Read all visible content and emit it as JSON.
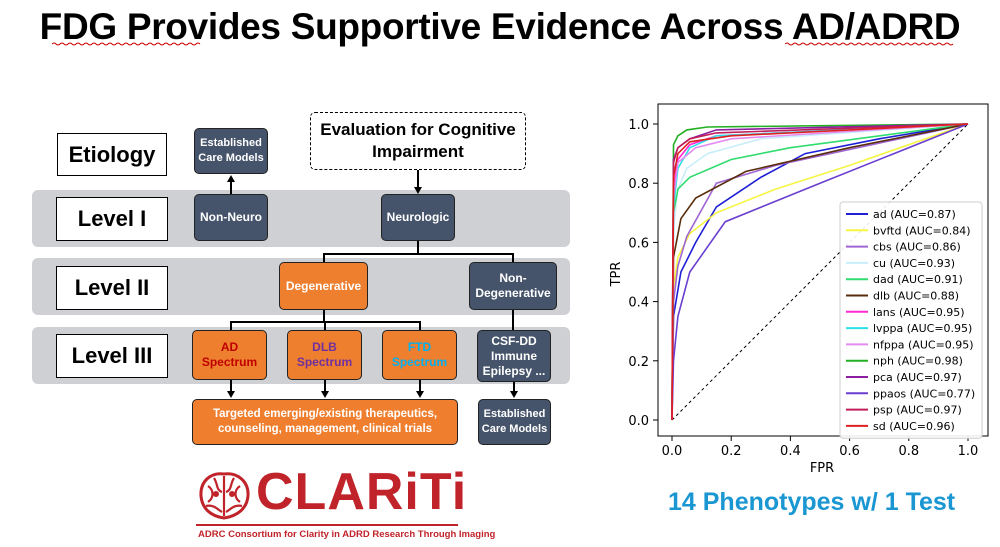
{
  "slide": {
    "title": "FDG Provides Supportive Evidence Across AD/ADRD",
    "tagline": "14 Phenotypes w/ 1 Test"
  },
  "flowchart": {
    "etiology_label": "Etiology",
    "levels": [
      "Level I",
      "Level II",
      "Level III"
    ],
    "evaluation": "Evaluation for Cognitive Impairment",
    "established_care_top": "Established Care Models",
    "non_neuro": "Non-Neuro",
    "neurologic": "Neurologic",
    "degenerative": "Degenerative",
    "non_degenerative": "Non-Degenerative",
    "spectra": [
      {
        "name": "AD",
        "suffix": "Spectrum",
        "name_color": "#c00000"
      },
      {
        "name": "DLB",
        "suffix": "Spectrum",
        "name_color": "#7030a0"
      },
      {
        "name": "FTD",
        "suffix": "Spectrum",
        "name_color": "#00b0f0"
      }
    ],
    "csf_dd": "CSF-DD Immune Epilepsy ...",
    "therapeutics": "Targeted emerging/existing therapeutics, counseling, management, clinical trials",
    "established_care_bottom": "Established Care Models"
  },
  "logo": {
    "name": "CLARiTi",
    "subtitle": "ADRC Consortium for Clarity in ADRD Research Through Imaging",
    "icon": "brain-icon",
    "color": "#c0232a"
  },
  "chart_data": {
    "type": "line",
    "title": "",
    "xlabel": "FPR",
    "ylabel": "TPR",
    "xlim": [
      0,
      1
    ],
    "ylim": [
      0,
      1
    ],
    "xticks": [
      "0.0",
      "0.2",
      "0.4",
      "0.6",
      "0.8",
      "1.0"
    ],
    "yticks": [
      "0.0",
      "0.2",
      "0.4",
      "0.6",
      "0.8",
      "1.0"
    ],
    "legend_position": "lower-right",
    "grid": false,
    "chance_line": true,
    "series": [
      {
        "name": "ad (AUC=0.87)",
        "color": "#1f1fd6",
        "x": [
          0,
          0.005,
          0.03,
          0.08,
          0.15,
          0.3,
          0.45,
          0.7,
          1.0
        ],
        "y": [
          0,
          0.35,
          0.5,
          0.6,
          0.72,
          0.82,
          0.9,
          0.95,
          1.0
        ]
      },
      {
        "name": "bvftd (AUC=0.84)",
        "color": "#f5f542",
        "x": [
          0,
          0.005,
          0.02,
          0.06,
          0.15,
          0.35,
          0.6,
          1.0
        ],
        "y": [
          0,
          0.45,
          0.55,
          0.63,
          0.7,
          0.78,
          0.86,
          1.0
        ]
      },
      {
        "name": "cbs (AUC=0.86)",
        "color": "#a066d3",
        "x": [
          0,
          0.005,
          0.02,
          0.05,
          0.15,
          0.35,
          1.0
        ],
        "y": [
          0,
          0.4,
          0.52,
          0.62,
          0.8,
          0.86,
          1.0
        ]
      },
      {
        "name": "cu (AUC=0.93)",
        "color": "#c8eefa",
        "x": [
          0,
          0.005,
          0.02,
          0.05,
          0.12,
          0.3,
          1.0
        ],
        "y": [
          0,
          0.65,
          0.78,
          0.85,
          0.9,
          0.95,
          1.0
        ]
      },
      {
        "name": "dad (AUC=0.91)",
        "color": "#2fdc6e",
        "x": [
          0,
          0.005,
          0.02,
          0.06,
          0.2,
          0.4,
          1.0
        ],
        "y": [
          0,
          0.7,
          0.78,
          0.82,
          0.88,
          0.92,
          1.0
        ]
      },
      {
        "name": "dlb (AUC=0.88)",
        "color": "#5a2d0c",
        "x": [
          0,
          0.005,
          0.03,
          0.08,
          0.25,
          0.6,
          1.0
        ],
        "y": [
          0,
          0.55,
          0.68,
          0.75,
          0.84,
          0.92,
          1.0
        ]
      },
      {
        "name": "lans (AUC=0.95)",
        "color": "#ff2ad4",
        "x": [
          0,
          0.005,
          0.02,
          0.06,
          0.15,
          1.0
        ],
        "y": [
          0,
          0.78,
          0.88,
          0.93,
          0.96,
          1.0
        ]
      },
      {
        "name": "lvppa (AUC=0.95)",
        "color": "#2ce0e8",
        "x": [
          0,
          0.005,
          0.02,
          0.06,
          0.15,
          1.0
        ],
        "y": [
          0,
          0.72,
          0.85,
          0.92,
          0.96,
          1.0
        ]
      },
      {
        "name": "nfppa (AUC=0.95)",
        "color": "#e48af0",
        "x": [
          0,
          0.005,
          0.02,
          0.08,
          0.2,
          1.0
        ],
        "y": [
          0,
          0.75,
          0.87,
          0.92,
          0.95,
          1.0
        ]
      },
      {
        "name": "nph (AUC=0.98)",
        "color": "#22b022",
        "x": [
          0,
          0.005,
          0.02,
          0.05,
          0.12,
          1.0
        ],
        "y": [
          0,
          0.93,
          0.96,
          0.98,
          0.99,
          1.0
        ]
      },
      {
        "name": "pca (AUC=0.97)",
        "color": "#8b1fa0",
        "x": [
          0,
          0.005,
          0.02,
          0.06,
          0.15,
          1.0
        ],
        "y": [
          0,
          0.88,
          0.92,
          0.95,
          0.98,
          1.0
        ]
      },
      {
        "name": "ppaos (AUC=0.77)",
        "color": "#6a3fcf",
        "x": [
          0,
          0.005,
          0.02,
          0.06,
          0.18,
          0.5,
          1.0
        ],
        "y": [
          0,
          0.2,
          0.35,
          0.5,
          0.67,
          0.8,
          1.0
        ]
      },
      {
        "name": "psp (AUC=0.97)",
        "color": "#c11e5a",
        "x": [
          0,
          0.005,
          0.02,
          0.06,
          0.15,
          1.0
        ],
        "y": [
          0,
          0.87,
          0.92,
          0.95,
          0.97,
          1.0
        ]
      },
      {
        "name": "sd (AUC=0.96)",
        "color": "#e02020",
        "x": [
          0,
          0.005,
          0.02,
          0.06,
          0.2,
          1.0
        ],
        "y": [
          0,
          0.82,
          0.9,
          0.94,
          0.96,
          1.0
        ]
      }
    ]
  }
}
